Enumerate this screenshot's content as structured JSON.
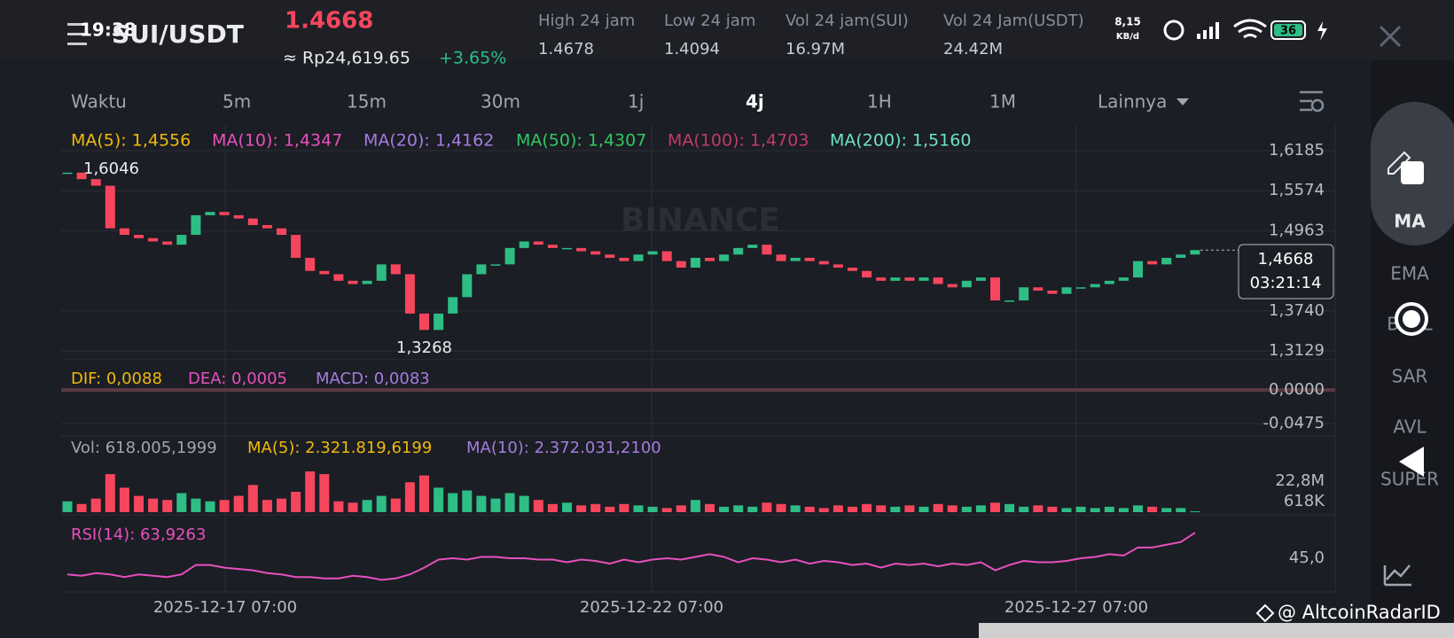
{
  "status_bar": {
    "time": "19:38",
    "net_speed": "8,15",
    "net_unit": "KB/d",
    "battery": "36"
  },
  "header": {
    "pair": "SUI/USDT",
    "price": "1.4668",
    "price_idr": "≈ Rp24,619.65",
    "change": "+3.65%",
    "stats": [
      {
        "label": "High 24 jam",
        "value": "1.4678"
      },
      {
        "label": "Low 24 jam",
        "value": "1.4094"
      },
      {
        "label": "Vol 24 jam(SUI)",
        "value": "16.97M"
      },
      {
        "label": "Vol 24 Jam(USDT)",
        "value": "24.42M"
      }
    ]
  },
  "timeframes": [
    {
      "label": "Waktu",
      "active": false
    },
    {
      "label": "5m",
      "active": false
    },
    {
      "label": "15m",
      "active": false
    },
    {
      "label": "30m",
      "active": false
    },
    {
      "label": "1j",
      "active": false
    },
    {
      "label": "4j",
      "active": true
    },
    {
      "label": "1H",
      "active": false
    },
    {
      "label": "1M",
      "active": false
    },
    {
      "label": "Lainnya",
      "active": false
    }
  ],
  "side_menu": [
    "MA",
    "EMA",
    "BOLL",
    "SAR",
    "AVL",
    "SUPER"
  ],
  "chart_data": {
    "type": "candlestick",
    "up_color": "#2ebd85",
    "down_color": "#f6465d",
    "legend": [
      {
        "text": "MA(5): 1,4556",
        "color": "#f0b90b"
      },
      {
        "text": "MA(10): 1,4347",
        "color": "#e84fbe"
      },
      {
        "text": "MA(20): 1,4162",
        "color": "#a57ce0"
      },
      {
        "text": "MA(50): 1,4307",
        "color": "#31c764"
      },
      {
        "text": "MA(100): 1,4703",
        "color": "#c03a6a"
      },
      {
        "text": "MA(200): 1,5160",
        "color": "#6fe0c8"
      }
    ],
    "close": [
      1.585,
      1.575,
      1.565,
      1.5,
      1.49,
      1.485,
      1.48,
      1.475,
      1.49,
      1.52,
      1.525,
      1.52,
      1.515,
      1.505,
      1.5,
      1.49,
      1.455,
      1.435,
      1.43,
      1.42,
      1.415,
      1.42,
      1.445,
      1.43,
      1.37,
      1.345,
      1.37,
      1.395,
      1.43,
      1.445,
      1.445,
      1.47,
      1.48,
      1.475,
      1.47,
      1.47,
      1.465,
      1.46,
      1.455,
      1.45,
      1.46,
      1.465,
      1.45,
      1.44,
      1.455,
      1.45,
      1.46,
      1.47,
      1.475,
      1.46,
      1.45,
      1.455,
      1.45,
      1.445,
      1.44,
      1.435,
      1.425,
      1.42,
      1.425,
      1.42,
      1.425,
      1.415,
      1.41,
      1.42,
      1.425,
      1.39,
      1.39,
      1.41,
      1.405,
      1.4,
      1.41,
      1.41,
      1.415,
      1.42,
      1.425,
      1.45,
      1.445,
      1.455,
      1.46,
      1.4668
    ],
    "ylim": [
      1.2995,
      1.6577
    ],
    "yticks": [
      {
        "value": 1.6185,
        "label": "1,6185"
      },
      {
        "value": 1.5574,
        "label": "1,5574"
      },
      {
        "value": 1.4963,
        "label": "1,4963"
      },
      {
        "value": 1.374,
        "label": "1,3740"
      },
      {
        "value": 1.3129,
        "label": "1,3129"
      }
    ],
    "high_label": "1,6046",
    "low_label": "1,3268",
    "last_price_label": "1,4668",
    "countdown": "03:21:14",
    "x_labels": [
      "2025-12-17 07:00",
      "2025-12-22 07:00",
      "2025-12-27 07:00"
    ],
    "watermark": "BINANCE"
  },
  "macd": {
    "legend": [
      {
        "text": "DIF: 0,0088",
        "color": "#f0b90b"
      },
      {
        "text": "DEA: 0,0005",
        "color": "#e84fbe"
      },
      {
        "text": "MACD: 0,0083",
        "color": "#a57ce0"
      }
    ],
    "ylim": [
      -0.065,
      0.034
    ],
    "yticks": [
      {
        "value": 0,
        "label": "0,0000"
      },
      {
        "value": -0.0475,
        "label": "-0,0475"
      }
    ]
  },
  "volume": {
    "legend": [
      {
        "text": "Vol: 618.005,1999",
        "color": "#a0a6b0"
      },
      {
        "text": "MA(5): 2.321.819,6199",
        "color": "#f0b90b"
      },
      {
        "text": "MA(10): 2.372.031,2100",
        "color": "#a57ce0"
      }
    ],
    "values": [
      8000000.0,
      6000000.0,
      10000000.0,
      28000000.0,
      18000000.0,
      12000000.0,
      10000000.0,
      9000000.0,
      14000000.0,
      10000000.0,
      8000000.0,
      9000000.0,
      12000000.0,
      20000000.0,
      9000000.0,
      10000000.0,
      15000000.0,
      30000000.0,
      28000000.0,
      8000000.0,
      7000000.0,
      9000000.0,
      12000000.0,
      10000000.0,
      22000000.0,
      27000000.0,
      18000000.0,
      14000000.0,
      16000000.0,
      12000000.0,
      10000000.0,
      14000000.0,
      12000000.0,
      9000000.0,
      6000000.0,
      7000000.0,
      5000000.0,
      6000000.0,
      4000000.0,
      6000000.0,
      5000000.0,
      4000000.0,
      3000000.0,
      5000000.0,
      9000000.0,
      6000000.0,
      4000000.0,
      5000000.0,
      4000000.0,
      7000000.0,
      6000000.0,
      5000000.0,
      4000000.0,
      3000000.0,
      5000000.0,
      4000000.0,
      6000000.0,
      5000000.0,
      4000000.0,
      5000000.0,
      4000000.0,
      6000000.0,
      5000000.0,
      4000000.0,
      5000000.0,
      7000000.0,
      6000000.0,
      4000000.0,
      5000000.0,
      4000000.0,
      3000000.0,
      4000000.0,
      3000000.0,
      4000000.0,
      3000000.0,
      5000000.0,
      4000000.0,
      3000000.0,
      3000000.0,
      618005.1999
    ],
    "ylim": [
      0,
      37800000
    ],
    "yticks": [
      {
        "value": 22800000,
        "label": "22,8M"
      }
    ],
    "last_label": "618K"
  },
  "rsi": {
    "legend": "RSI(14): 63,9263",
    "color": "#e84fbe",
    "values": [
      33,
      32,
      34,
      33,
      31,
      33,
      32,
      31,
      33,
      40,
      40,
      38,
      37,
      36,
      34,
      33,
      31,
      31,
      30,
      30,
      32,
      31,
      29,
      30,
      33,
      38,
      44,
      45,
      44,
      46,
      46,
      45,
      45,
      44,
      44,
      42,
      44,
      43,
      41,
      44,
      42,
      44,
      45,
      44,
      46,
      48,
      46,
      42,
      45,
      44,
      42,
      44,
      41,
      43,
      42,
      40,
      41,
      38,
      41,
      40,
      41,
      39,
      41,
      40,
      42,
      36,
      40,
      43,
      42,
      42,
      43,
      45,
      46,
      48,
      47,
      53,
      53,
      55,
      57,
      63.9263
    ],
    "ylim": [
      20,
      68
    ],
    "yticks": [
      {
        "value": 45,
        "label": "45,0"
      }
    ]
  },
  "credit": "@ AltcoinRadarID"
}
